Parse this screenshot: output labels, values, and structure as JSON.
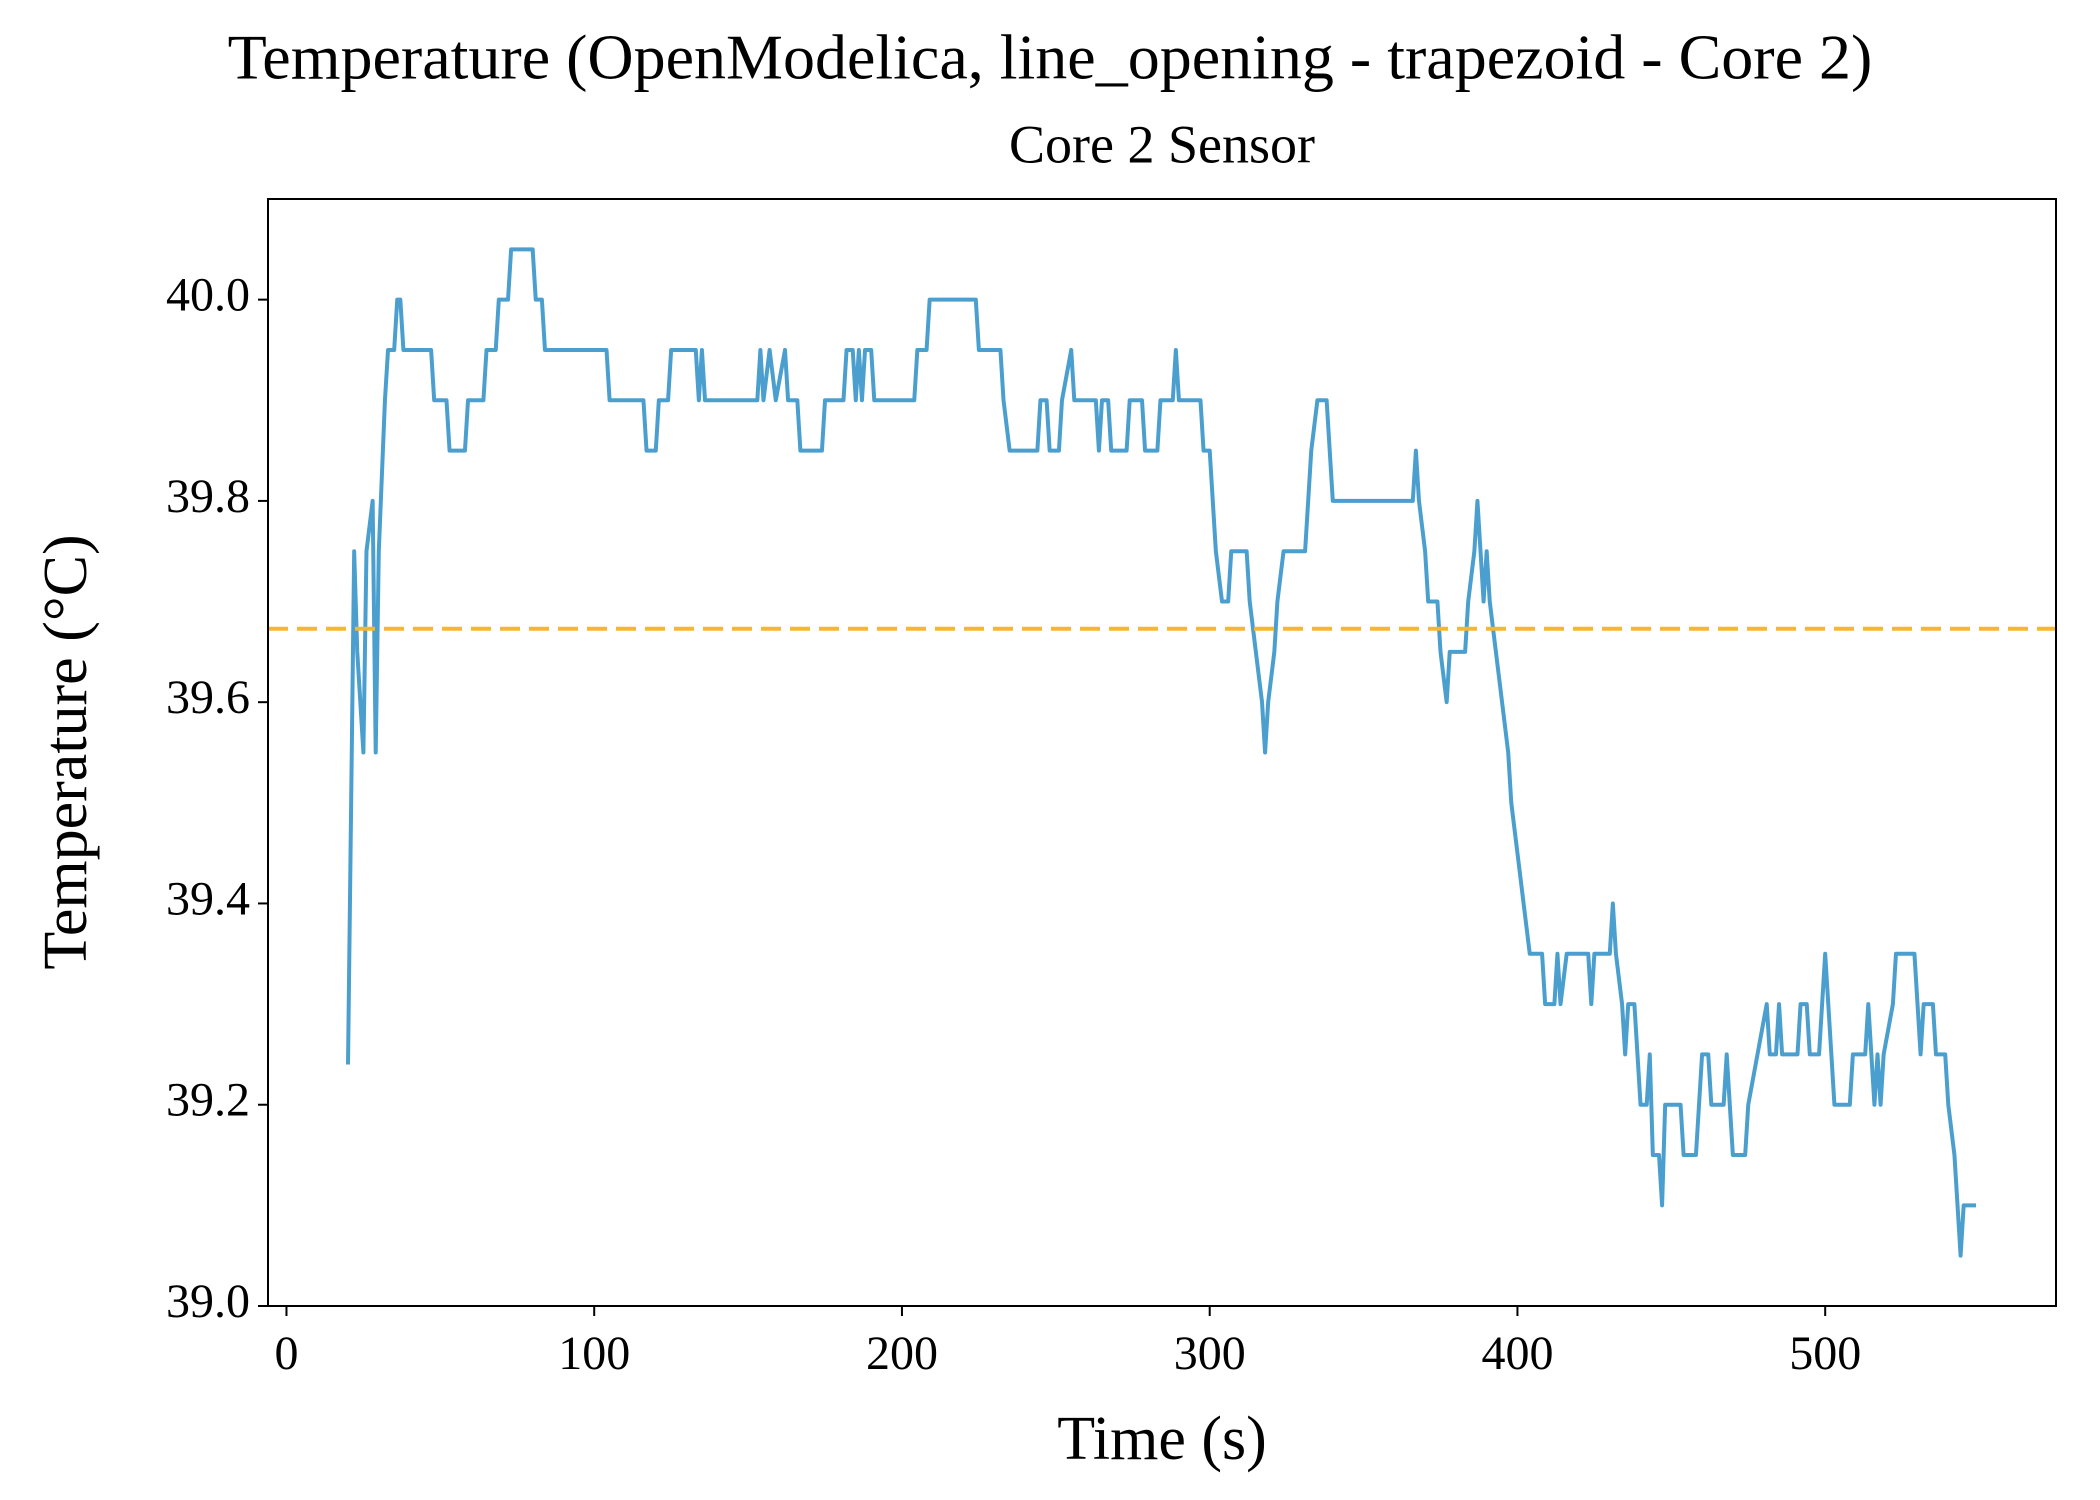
{
  "chart_data": {
    "type": "line",
    "title": "Temperature (OpenModelica, line_opening - trapezoid - Core 2)",
    "subtitle": "Core 2 Sensor",
    "x_label": "Time (s)",
    "y_label": "Temperature (°C)",
    "xlim": [
      -6,
      575
    ],
    "ylim": [
      39.0,
      40.1
    ],
    "xticks": [
      0,
      100,
      200,
      300,
      400,
      500
    ],
    "yticks": [
      {
        "value": 39.0,
        "label": "39.0"
      },
      39.2,
      39.4,
      39.6,
      39.8,
      {
        "value": 40.0,
        "label": "40.0"
      }
    ],
    "grid": false,
    "x": [
      20,
      22,
      23,
      25,
      26,
      28,
      29,
      30,
      32,
      33,
      35,
      36,
      37,
      38,
      47,
      48,
      52,
      53,
      58,
      59,
      64,
      65,
      68,
      69,
      72,
      73,
      80,
      81,
      83,
      84,
      104,
      105,
      116,
      117,
      120,
      121,
      124,
      125,
      133,
      134,
      135,
      136,
      153,
      154,
      155,
      157,
      159,
      162,
      163,
      166,
      167,
      174,
      175,
      181,
      182,
      184,
      185,
      186,
      187,
      188,
      190,
      191,
      204,
      205,
      208,
      209,
      224,
      225,
      232,
      233,
      235,
      244,
      245,
      247,
      248,
      251,
      252,
      255,
      256,
      263,
      264,
      265,
      267,
      268,
      273,
      274,
      278,
      279,
      283,
      284,
      288,
      289,
      290,
      297,
      298,
      300,
      301,
      302,
      304,
      306,
      307,
      312,
      313,
      315,
      317,
      318,
      319,
      321,
      322,
      324,
      331,
      332,
      333,
      335,
      338,
      339,
      340,
      366,
      367,
      368,
      370,
      371,
      374,
      375,
      377,
      378,
      383,
      384,
      386,
      387,
      388,
      389,
      390,
      391,
      393,
      395,
      397,
      398,
      400,
      402,
      404,
      408,
      409,
      412,
      413,
      414,
      416,
      423,
      424,
      425,
      430,
      431,
      432,
      434,
      435,
      436,
      438,
      439,
      440,
      442,
      443,
      444,
      446,
      447,
      448,
      453,
      454,
      458,
      459,
      460,
      462,
      463,
      467,
      468,
      469,
      470,
      474,
      475,
      478,
      481,
      482,
      484,
      485,
      486,
      491,
      492,
      494,
      495,
      498,
      499,
      500,
      501,
      502,
      503,
      508,
      509,
      513,
      514,
      515,
      516,
      517,
      518,
      519,
      522,
      523,
      529,
      530,
      531,
      532,
      535,
      536,
      539,
      540,
      542,
      544,
      545,
      549
    ],
    "series": [
      {
        "color": "#4a9fcf",
        "values": [
          39.24,
          39.75,
          39.65,
          39.55,
          39.75,
          39.8,
          39.55,
          39.75,
          39.9,
          39.95,
          39.95,
          40.0,
          40.0,
          39.95,
          39.95,
          39.9,
          39.9,
          39.85,
          39.85,
          39.9,
          39.9,
          39.95,
          39.95,
          40.0,
          40.0,
          40.05,
          40.05,
          40.0,
          40.0,
          39.95,
          39.95,
          39.9,
          39.9,
          39.85,
          39.85,
          39.9,
          39.9,
          39.95,
          39.95,
          39.9,
          39.95,
          39.9,
          39.9,
          39.95,
          39.9,
          39.95,
          39.9,
          39.95,
          39.9,
          39.9,
          39.85,
          39.85,
          39.9,
          39.9,
          39.95,
          39.95,
          39.9,
          39.95,
          39.9,
          39.95,
          39.95,
          39.9,
          39.9,
          39.95,
          39.95,
          40.0,
          40.0,
          39.95,
          39.95,
          39.9,
          39.85,
          39.85,
          39.9,
          39.9,
          39.85,
          39.85,
          39.9,
          39.95,
          39.9,
          39.9,
          39.85,
          39.9,
          39.9,
          39.85,
          39.85,
          39.9,
          39.9,
          39.85,
          39.85,
          39.9,
          39.9,
          39.95,
          39.9,
          39.9,
          39.85,
          39.85,
          39.8,
          39.75,
          39.7,
          39.7,
          39.75,
          39.75,
          39.7,
          39.65,
          39.6,
          39.55,
          39.6,
          39.65,
          39.7,
          39.75,
          39.75,
          39.8,
          39.85,
          39.9,
          39.9,
          39.85,
          39.8,
          39.8,
          39.85,
          39.8,
          39.75,
          39.7,
          39.7,
          39.65,
          39.6,
          39.65,
          39.65,
          39.7,
          39.75,
          39.8,
          39.75,
          39.7,
          39.75,
          39.7,
          39.65,
          39.6,
          39.55,
          39.5,
          39.45,
          39.4,
          39.35,
          39.35,
          39.3,
          39.3,
          39.35,
          39.3,
          39.35,
          39.35,
          39.3,
          39.35,
          39.35,
          39.4,
          39.35,
          39.3,
          39.25,
          39.3,
          39.3,
          39.25,
          39.2,
          39.2,
          39.25,
          39.15,
          39.15,
          39.1,
          39.2,
          39.2,
          39.15,
          39.15,
          39.2,
          39.25,
          39.25,
          39.2,
          39.2,
          39.25,
          39.2,
          39.15,
          39.15,
          39.2,
          39.25,
          39.3,
          39.25,
          39.25,
          39.3,
          39.25,
          39.25,
          39.3,
          39.3,
          39.25,
          39.25,
          39.3,
          39.35,
          39.3,
          39.25,
          39.2,
          39.2,
          39.25,
          39.25,
          39.3,
          39.25,
          39.2,
          39.25,
          39.2,
          39.25,
          39.3,
          39.35,
          39.35,
          39.3,
          39.25,
          39.3,
          39.3,
          39.25,
          39.25,
          39.2,
          39.15,
          39.05,
          39.1,
          39.1
        ]
      }
    ],
    "reference_line": {
      "value": 39.673,
      "color": "#f5b731",
      "style": "dashed"
    }
  }
}
